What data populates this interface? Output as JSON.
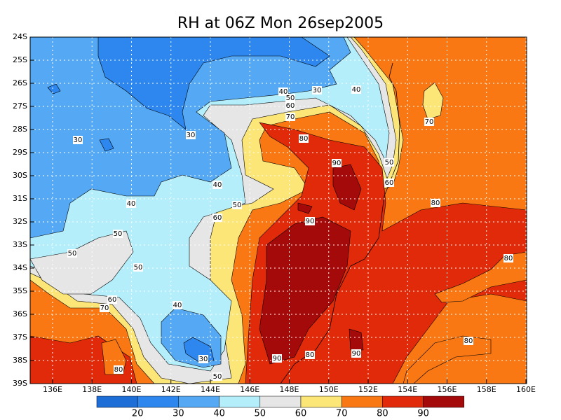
{
  "title": "RH at 06Z Mon 26sep2005",
  "lon_labels": [
    "136E",
    "138E",
    "140E",
    "142E",
    "144E",
    "146E",
    "148E",
    "150E",
    "152E",
    "154E",
    "156E",
    "158E",
    "160E"
  ],
  "lat_labels": [
    "24S",
    "25S",
    "26S",
    "27S",
    "28S",
    "29S",
    "30S",
    "31S",
    "32S",
    "33S",
    "34S",
    "35S",
    "36S",
    "37S",
    "38S",
    "39S"
  ],
  "colorbar": {
    "levels": [
      20,
      30,
      40,
      50,
      60,
      70,
      80,
      90
    ],
    "colors": [
      "#1e6ed8",
      "#2d87ee",
      "#55a8f4",
      "#b4eefa",
      "#e6e6e6",
      "#fce678",
      "#fa7814",
      "#e12a0a",
      "#a50a0a"
    ]
  },
  "contour_labels": [
    30,
    40,
    40,
    50,
    60,
    70,
    70,
    30,
    30,
    80,
    90,
    50,
    60,
    40,
    40,
    50,
    80,
    60,
    90,
    50,
    50,
    80,
    50,
    60,
    70,
    40,
    80,
    30,
    80,
    90,
    90,
    80,
    50
  ]
}
